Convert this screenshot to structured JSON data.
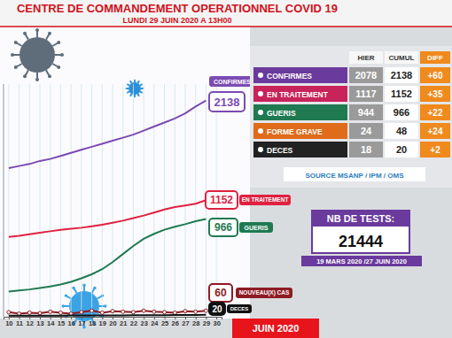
{
  "chart_data": {
    "type": "line",
    "title": "CENTRE DE COMMANDEMENT OPERATIONNEL COVID 19",
    "subtitle": "LUNDI 29 JUIN 2020 A 13H00",
    "x_label": "JUIN 2020",
    "x": [
      10,
      11,
      12,
      13,
      14,
      15,
      16,
      17,
      18,
      19,
      20,
      21,
      22,
      23,
      24,
      25,
      26,
      27,
      28,
      29
    ],
    "xlim": [
      9.5,
      30.5
    ],
    "xticks": [
      10,
      11,
      12,
      13,
      14,
      15,
      16,
      17,
      18,
      19,
      20,
      21,
      22,
      23,
      24,
      25,
      26,
      27,
      28,
      29,
      30
    ],
    "ylim": [
      0,
      2300
    ],
    "grid": true,
    "tick_labels": "x",
    "series": [
      {
        "name": "CONFIRMES",
        "color": "#7b4bb3",
        "values": [
          1470,
          1490,
          1510,
          1540,
          1560,
          1590,
          1620,
          1650,
          1680,
          1710,
          1740,
          1770,
          1800,
          1840,
          1880,
          1920,
          1960,
          2010,
          2078,
          2138
        ]
      },
      {
        "name": "EN TRAITEMENT",
        "color": "#e0213f",
        "values": [
          790,
          800,
          815,
          830,
          845,
          860,
          870,
          880,
          895,
          910,
          930,
          950,
          975,
          1000,
          1030,
          1060,
          1085,
          1100,
          1117,
          1152
        ]
      },
      {
        "name": "GUERIS",
        "color": "#1f7a52",
        "values": [
          250,
          260,
          270,
          285,
          300,
          320,
          345,
          380,
          420,
          470,
          540,
          620,
          700,
          770,
          820,
          860,
          890,
          915,
          944,
          966
        ]
      },
      {
        "name": "NOUVEAU(X) CAS",
        "color": "#8e1b24",
        "marker": "circle",
        "values": [
          45,
          30,
          40,
          35,
          50,
          40,
          30,
          45,
          60,
          40,
          55,
          50,
          45,
          60,
          50,
          45,
          40,
          55,
          50,
          60
        ]
      },
      {
        "name": "DECES",
        "color": "#111111",
        "values": [
          10,
          10,
          11,
          11,
          12,
          12,
          13,
          13,
          13,
          13,
          14,
          14,
          15,
          15,
          16,
          16,
          17,
          17,
          18,
          20
        ]
      }
    ]
  },
  "table": {
    "columns": [
      "HIER",
      "CUMUL",
      "DIFF"
    ],
    "rows": [
      [
        "CONFIRMES",
        "2078",
        "2138",
        "+60"
      ],
      [
        "EN TRAITEMENT",
        "1117",
        "1152",
        "+35"
      ],
      [
        "GUERIS",
        "944",
        "966",
        "+22"
      ],
      [
        "FORME GRAVE",
        "24",
        "48",
        "+24"
      ],
      [
        "DECES",
        "18",
        "20",
        "+2"
      ]
    ]
  },
  "source": "SOURCE MSANP / IPM / OMS",
  "tests": {
    "label": "NB DE TESTS:",
    "value": "21444",
    "period": "19 MARS 2020 /27 JUIN 2020"
  }
}
